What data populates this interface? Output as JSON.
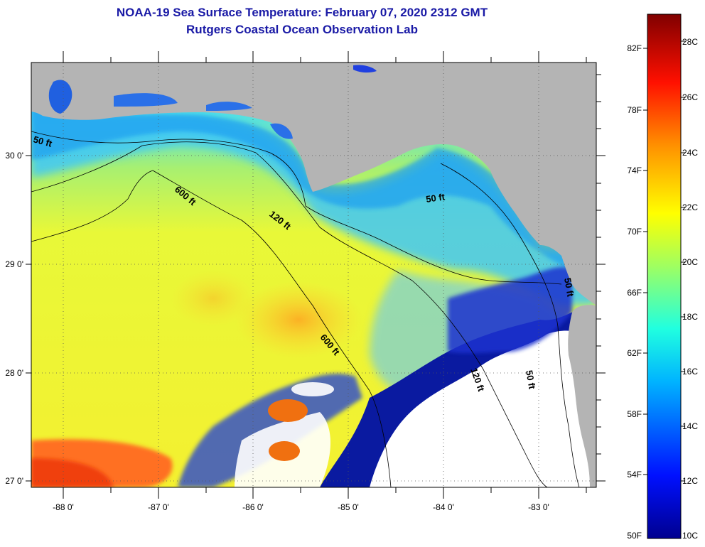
{
  "title": "NOAA-19 Sea Surface Temperature:  February 07, 2020 2312 GMT",
  "subtitle": "Rutgers Coastal Ocean Observation Lab",
  "lon_labels": [
    "-88 0'",
    "-87 0'",
    "-86 0'",
    "-85 0'",
    "-84 0'",
    "-83 0'"
  ],
  "lat_labels": [
    "30 0'",
    "29 0'",
    "28 0'",
    "27 0'"
  ],
  "contour_labels": [
    "50 ft",
    "600 ft",
    "120 ft",
    "50 ft",
    "600 ft",
    "120 ft",
    "50 ft",
    "50 ft"
  ],
  "colorbar": {
    "fahrenheit": [
      "82F",
      "78F",
      "74F",
      "70F",
      "66F",
      "62F",
      "58F",
      "54F",
      "50F"
    ],
    "celsius": [
      "28C",
      "26C",
      "24C",
      "22C",
      "20C",
      "18C",
      "16C",
      "14C",
      "12C",
      "10C"
    ]
  },
  "colors": {
    "land": "#b4b4b4",
    "title": "#1a1aa6"
  }
}
